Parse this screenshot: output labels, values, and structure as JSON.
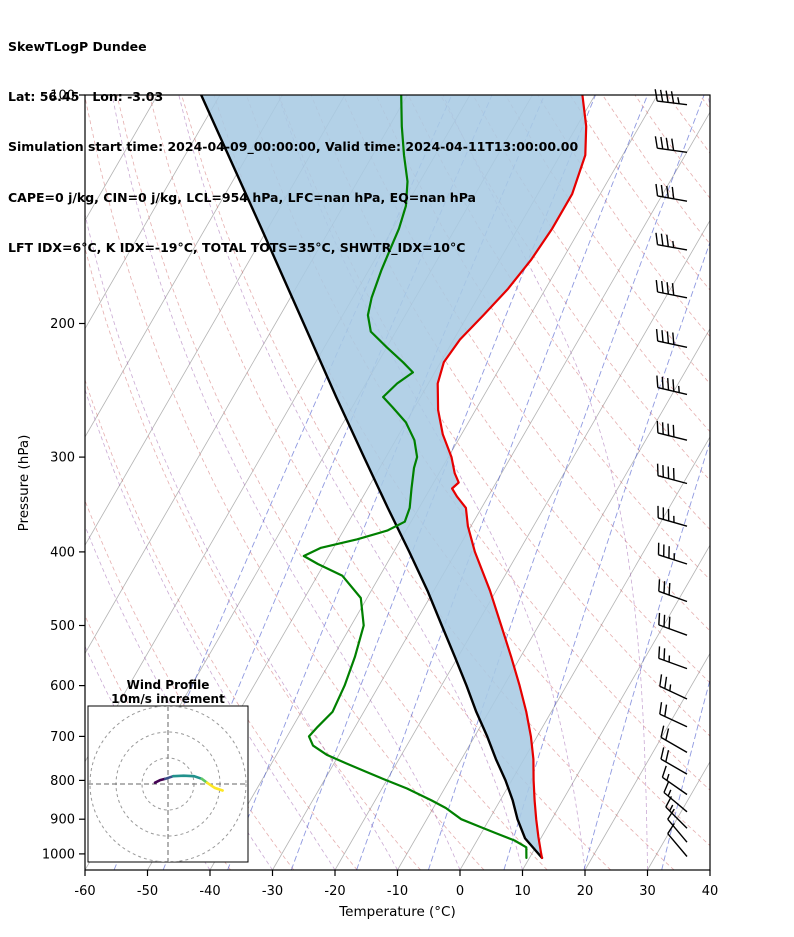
{
  "header": {
    "line1": "SkewTLogP Dundee",
    "line2": "Lat: 56.45   Lon: -3.03",
    "line3": "Simulation start time: 2024-04-09_00:00:00, Valid time: 2024-04-11T13:00:00.00",
    "line4": "CAPE=0 j/kg, CIN=0 j/kg, LCL=954 hPa, LFC=nan hPa, EQ=nan hPa",
    "line5": "LFT IDX=6°C, K IDX=-19°C, TOTAL TOTS=35°C, SHWTR_IDX=10°C"
  },
  "chart_data": {
    "type": "skewt-logp",
    "title": "SkewTLogP Dundee",
    "station": {
      "lat": 56.45,
      "lon": -3.03
    },
    "indices": {
      "CAPE_j_kg": 0,
      "CIN_j_kg": 0,
      "LCL_hPa": 954,
      "LFC_hPa": "nan",
      "EQ_hPa": "nan",
      "LFT_IDX_C": 6,
      "K_IDX_C": -19,
      "TOTAL_TOTS_C": 35,
      "SHWTR_IDX_C": 10
    },
    "xlabel": "Temperature (°C)",
    "ylabel": "Pressure (hPa)",
    "x_range": [
      -60,
      40
    ],
    "pressure_range": [
      100,
      1050
    ],
    "skew_deg": 30,
    "pressure_ticks": [
      100,
      200,
      300,
      400,
      500,
      600,
      700,
      800,
      900,
      1000
    ],
    "temperature_ticks": [
      -60,
      -50,
      -40,
      -30,
      -20,
      -10,
      0,
      10,
      20,
      30,
      40
    ],
    "isotherms": {
      "start": -120,
      "end": 40,
      "step": 10,
      "color": "#b3b3b3"
    },
    "dry_adiabats": {
      "theta_start": -40,
      "theta_end": 210,
      "step": 10,
      "color": "#cf6b6b"
    },
    "moist_adiabats": {
      "t_start": -40,
      "t_end": 40,
      "step": 10,
      "color": "#9e64b0"
    },
    "mixing_ratio_lines": {
      "values_g_kg": [
        0.02,
        0.05,
        0.15,
        0.4,
        1,
        2.5,
        6,
        14,
        30
      ],
      "color": "#4455cc"
    },
    "shading": {
      "color": "#a8cbe4",
      "opacity": 0.88,
      "between": [
        "parcel",
        "temperature"
      ]
    },
    "profiles": {
      "temperature": {
        "color": "#e60000",
        "points": [
          [
            1012,
            12
          ],
          [
            1000,
            11.5
          ],
          [
            950,
            9.5
          ],
          [
            900,
            7.5
          ],
          [
            850,
            5.5
          ],
          [
            800,
            3.5
          ],
          [
            750,
            1.5
          ],
          [
            700,
            -1
          ],
          [
            650,
            -4
          ],
          [
            600,
            -7.5
          ],
          [
            550,
            -11.5
          ],
          [
            500,
            -16
          ],
          [
            450,
            -21
          ],
          [
            400,
            -27
          ],
          [
            370,
            -30.5
          ],
          [
            350,
            -32.5
          ],
          [
            338,
            -35
          ],
          [
            330,
            -36.5
          ],
          [
            324,
            -36
          ],
          [
            315,
            -37.5
          ],
          [
            300,
            -39.5
          ],
          [
            280,
            -43
          ],
          [
            260,
            -46
          ],
          [
            240,
            -48.5
          ],
          [
            225,
            -49.5
          ],
          [
            210,
            -49
          ],
          [
            195,
            -47.5
          ],
          [
            180,
            -46
          ],
          [
            165,
            -45
          ],
          [
            150,
            -44.5
          ],
          [
            135,
            -44.5
          ],
          [
            120,
            -46
          ],
          [
            110,
            -48.5
          ],
          [
            100,
            -52
          ]
        ]
      },
      "dewpoint": {
        "color": "#008000",
        "points": [
          [
            1012,
            9.5
          ],
          [
            980,
            8.5
          ],
          [
            960,
            6
          ],
          [
            940,
            2.5
          ],
          [
            920,
            -1
          ],
          [
            900,
            -4.5
          ],
          [
            870,
            -8
          ],
          [
            850,
            -11
          ],
          [
            820,
            -16
          ],
          [
            800,
            -20
          ],
          [
            780,
            -24
          ],
          [
            760,
            -28
          ],
          [
            740,
            -32
          ],
          [
            720,
            -35
          ],
          [
            700,
            -36.5
          ],
          [
            680,
            -36
          ],
          [
            650,
            -35
          ],
          [
            600,
            -35.5
          ],
          [
            550,
            -36.5
          ],
          [
            500,
            -38
          ],
          [
            460,
            -41
          ],
          [
            430,
            -46
          ],
          [
            415,
            -51
          ],
          [
            405,
            -54
          ],
          [
            395,
            -52
          ],
          [
            385,
            -47
          ],
          [
            375,
            -43
          ],
          [
            365,
            -41
          ],
          [
            350,
            -41.5
          ],
          [
            330,
            -43
          ],
          [
            310,
            -44.5
          ],
          [
            300,
            -45
          ],
          [
            285,
            -47
          ],
          [
            270,
            -50
          ],
          [
            258,
            -53.5
          ],
          [
            250,
            -56
          ],
          [
            240,
            -55
          ],
          [
            232,
            -53.5
          ],
          [
            225,
            -56
          ],
          [
            215,
            -60
          ],
          [
            205,
            -64
          ],
          [
            195,
            -66
          ],
          [
            185,
            -67
          ],
          [
            170,
            -68
          ],
          [
            160,
            -68.5
          ],
          [
            150,
            -69
          ],
          [
            140,
            -70
          ],
          [
            130,
            -72
          ],
          [
            120,
            -75
          ],
          [
            110,
            -78
          ],
          [
            100,
            -81
          ]
        ]
      },
      "parcel": {
        "color": "#000000",
        "points": [
          [
            1012,
            12
          ],
          [
            954,
            7.5
          ],
          [
            900,
            4.5
          ],
          [
            850,
            2
          ],
          [
            800,
            -1
          ],
          [
            750,
            -4.5
          ],
          [
            700,
            -8
          ],
          [
            650,
            -12
          ],
          [
            600,
            -16
          ],
          [
            550,
            -20.5
          ],
          [
            500,
            -25.5
          ],
          [
            450,
            -31
          ],
          [
            400,
            -37.5
          ],
          [
            350,
            -45
          ],
          [
            300,
            -53.5
          ],
          [
            250,
            -63.5
          ],
          [
            200,
            -75.5
          ],
          [
            150,
            -91
          ],
          [
            100,
            -113
          ]
        ]
      }
    },
    "wind_barbs": {
      "color": "#000000",
      "levels": [
        {
          "p": 1008,
          "speed_kt": 10,
          "dir_deg": 320
        },
        {
          "p": 965,
          "speed_kt": 10,
          "dir_deg": 320
        },
        {
          "p": 925,
          "speed_kt": 15,
          "dir_deg": 315
        },
        {
          "p": 880,
          "speed_kt": 15,
          "dir_deg": 310
        },
        {
          "p": 835,
          "speed_kt": 15,
          "dir_deg": 305
        },
        {
          "p": 785,
          "speed_kt": 20,
          "dir_deg": 300
        },
        {
          "p": 735,
          "speed_kt": 20,
          "dir_deg": 300
        },
        {
          "p": 680,
          "speed_kt": 20,
          "dir_deg": 295
        },
        {
          "p": 625,
          "speed_kt": 25,
          "dir_deg": 295
        },
        {
          "p": 570,
          "speed_kt": 25,
          "dir_deg": 290
        },
        {
          "p": 515,
          "speed_kt": 30,
          "dir_deg": 290
        },
        {
          "p": 465,
          "speed_kt": 30,
          "dir_deg": 290
        },
        {
          "p": 415,
          "speed_kt": 35,
          "dir_deg": 288
        },
        {
          "p": 370,
          "speed_kt": 35,
          "dir_deg": 286
        },
        {
          "p": 325,
          "speed_kt": 40,
          "dir_deg": 285
        },
        {
          "p": 285,
          "speed_kt": 40,
          "dir_deg": 284
        },
        {
          "p": 248,
          "speed_kt": 45,
          "dir_deg": 283
        },
        {
          "p": 215,
          "speed_kt": 40,
          "dir_deg": 282
        },
        {
          "p": 185,
          "speed_kt": 40,
          "dir_deg": 281
        },
        {
          "p": 160,
          "speed_kt": 35,
          "dir_deg": 280
        },
        {
          "p": 138,
          "speed_kt": 40,
          "dir_deg": 280
        },
        {
          "p": 119,
          "speed_kt": 40,
          "dir_deg": 278
        },
        {
          "p": 103,
          "speed_kt": 45,
          "dir_deg": 277
        }
      ]
    },
    "hodograph": {
      "title_line1": "Wind Profile",
      "title_line2": "10m/s increment",
      "ring_interval_ms": 10,
      "rings_ms": [
        10,
        20,
        30
      ],
      "segments": [
        {
          "color": "#440154",
          "points": [
            [
              -5,
              0.5
            ],
            [
              -3,
              1.5
            ],
            [
              -1,
              2
            ]
          ]
        },
        {
          "color": "#3b528b",
          "points": [
            [
              -1,
              2
            ],
            [
              2,
              3
            ]
          ]
        },
        {
          "color": "#21918c",
          "points": [
            [
              2,
              3
            ],
            [
              6,
              3.2
            ],
            [
              10,
              3
            ],
            [
              13,
              2
            ]
          ]
        },
        {
          "color": "#5ec962",
          "points": [
            [
              13,
              2
            ],
            [
              15,
              0.5
            ]
          ]
        },
        {
          "color": "#fde725",
          "points": [
            [
              15,
              0.5
            ],
            [
              18,
              -1.5
            ],
            [
              21,
              -2.5
            ]
          ]
        }
      ]
    }
  }
}
